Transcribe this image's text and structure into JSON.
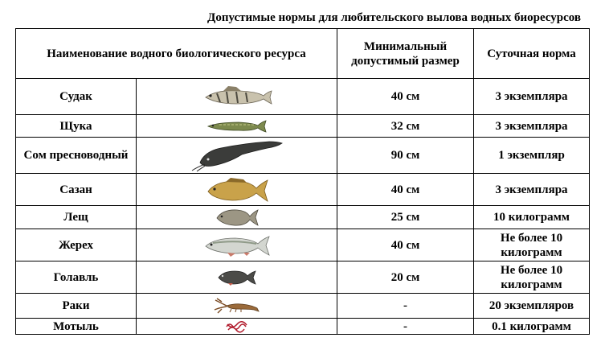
{
  "title": "Допустимые нормы для любительского вылова водных биоресурсов",
  "headers": {
    "name": "Наименование водного биологического ресурса",
    "min_size": "Минимальный допустимый размер",
    "daily_norm": "Суточная норма"
  },
  "rows": [
    {
      "name": "Судак",
      "size": "40 см",
      "norm": "3 экземпляра",
      "icon": "zander-icon"
    },
    {
      "name": "Щука",
      "size": "32 см",
      "norm": "3 экземпляра",
      "icon": "pike-icon"
    },
    {
      "name": "Сом пресноводный",
      "size": "90 см",
      "norm": "1 экземпляр",
      "icon": "catfish-icon"
    },
    {
      "name": "Сазан",
      "size": "40 см",
      "norm": "3 экземпляра",
      "icon": "carp-icon"
    },
    {
      "name": "Лещ",
      "size": "25 см",
      "norm": "10 килограмм",
      "icon": "bream-icon"
    },
    {
      "name": "Жерех",
      "size": "40 см",
      "norm": "Не более 10 килограмм",
      "icon": "asp-icon"
    },
    {
      "name": "Голавль",
      "size": "20 см",
      "norm": "Не более 10 килограмм",
      "icon": "chub-icon"
    },
    {
      "name": "Раки",
      "size": "-",
      "norm": "20 экземпляров",
      "icon": "crayfish-icon"
    },
    {
      "name": "Мотыль",
      "size": "-",
      "norm": "0.1 килограмм",
      "icon": "bloodworm-icon"
    }
  ]
}
